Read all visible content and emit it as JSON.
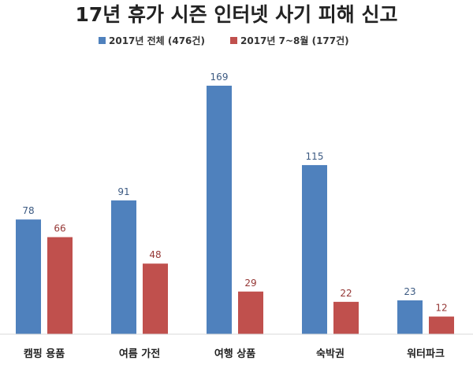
{
  "chart_data": {
    "type": "bar",
    "title": "17년 휴가 시즌 인터넷 사기 피해 신고",
    "xlabel": "",
    "ylabel": "",
    "ylim": [
      0,
      175
    ],
    "grid": false,
    "legend_position": "top",
    "categories": [
      "캠핑 용품",
      "여름 가전",
      "여행 상품",
      "숙박권",
      "워터파크"
    ],
    "series": [
      {
        "name": "2017년 전체 (476건)",
        "values": [
          78,
          91,
          169,
          115,
          23
        ],
        "color": "#4f81bd",
        "label_color": "#3c5a82"
      },
      {
        "name": "2017년 7~8월 (177건)",
        "values": [
          66,
          48,
          29,
          22,
          12
        ],
        "color": "#c0504d",
        "label_color": "#953735"
      }
    ]
  }
}
